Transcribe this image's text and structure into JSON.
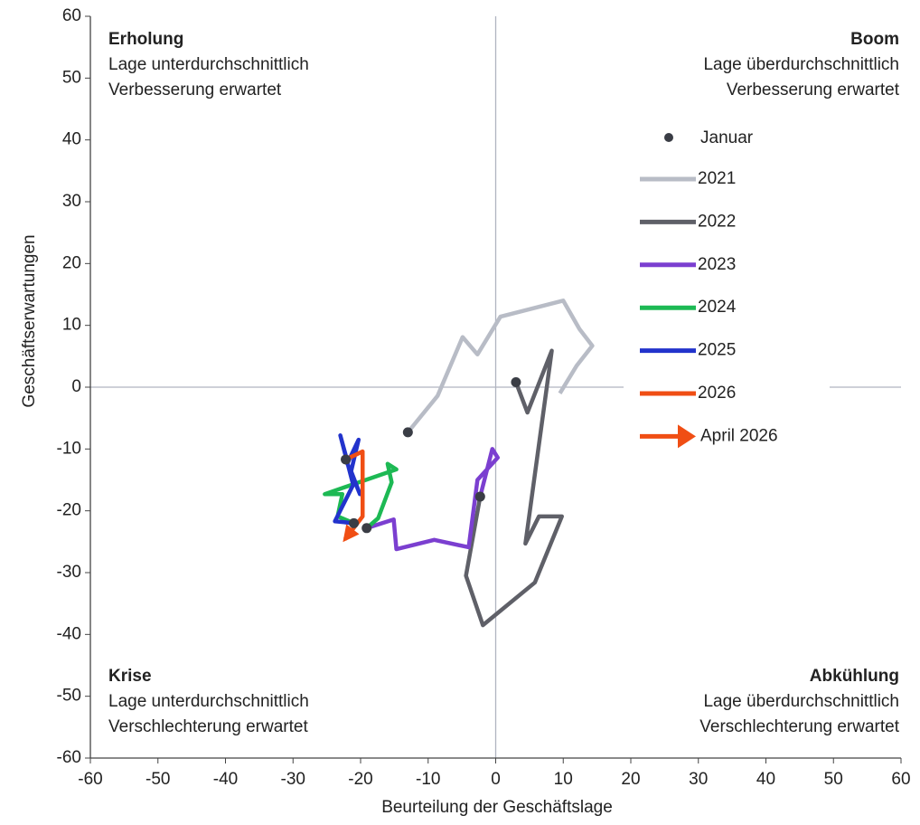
{
  "chart_data": {
    "type": "line",
    "x_label": "Beurteilung der Geschäftslage",
    "y_label": "Geschäftserwartungen",
    "xlim": [
      -60,
      60
    ],
    "xticks": [
      -60,
      -50,
      -40,
      -30,
      -20,
      -10,
      0,
      10,
      20,
      30,
      40,
      50,
      60
    ],
    "ylim": [
      -60,
      60
    ],
    "yticks": [
      -60,
      -50,
      -40,
      -30,
      -20,
      -10,
      0,
      10,
      20,
      30,
      40,
      50,
      60
    ],
    "quadrants": {
      "top_left": [
        "Erholung",
        "Lage unterdurchschnittlich",
        "Verbesserung erwartet"
      ],
      "top_right": [
        "Boom",
        "Lage überdurchschnittlich",
        "Verbesserung erwartet"
      ],
      "bottom_left": [
        "Krise",
        "Lage unterdurchschnittlich",
        "Verschlechterung erwartet"
      ],
      "bottom_right": [
        "Abkühlung",
        "Lage überdurchschnittlich",
        "Verschlechterung erwartet"
      ]
    },
    "marker_label": "Januar",
    "marker_color": "#3a3d45",
    "arrow_label": "April 2026",
    "series": [
      {
        "name": "2021",
        "color": "#b8bcc6",
        "x": [
          -13.0,
          -8.6,
          -4.9,
          -2.7,
          0.7,
          10.0,
          12.4,
          14.3,
          12.0,
          9.5
        ],
        "values": [
          -7.3,
          -1.4,
          8.1,
          5.3,
          11.4,
          14.0,
          9.4,
          6.7,
          3.5,
          -1.0
        ]
      },
      {
        "name": "2022",
        "color": "#5f6068",
        "x": [
          3.0,
          4.7,
          8.3,
          4.4,
          6.4,
          9.8,
          5.8,
          -1.9,
          -4.4,
          -2.3
        ],
        "values": [
          0.8,
          -4.1,
          5.9,
          -25.3,
          -20.9,
          -20.9,
          -31.6,
          -38.5,
          -30.5,
          -17.7
        ]
      },
      {
        "name": "2023",
        "color": "#7b3fd0",
        "x": [
          -2.3,
          -0.5,
          0.3,
          -2.7,
          -4.0,
          -9.1,
          -14.7,
          -15.1,
          -19.1
        ],
        "values": [
          -17.7,
          -10.0,
          -11.4,
          -15.0,
          -25.9,
          -24.7,
          -26.2,
          -21.4,
          -22.8
        ]
      },
      {
        "name": "2024",
        "color": "#1db954",
        "x": [
          -19.1,
          -17.4,
          -15.4,
          -16.0,
          -14.7,
          -25.3,
          -22.7,
          -23.4,
          -21.0
        ],
        "values": [
          -22.8,
          -21.2,
          -15.4,
          -12.4,
          -13.3,
          -17.3,
          -17.3,
          -20.9,
          -22.0
        ]
      },
      {
        "name": "2025",
        "color": "#2233cc",
        "x": [
          -21.0,
          -23.8,
          -21.1,
          -23.0,
          -21.9,
          -20.3,
          -21.4,
          -20.1,
          -22.2
        ],
        "values": [
          -22.0,
          -21.7,
          -15.8,
          -7.8,
          -12.2,
          -8.5,
          -13.6,
          -17.3,
          -11.7
        ]
      },
      {
        "name": "2026",
        "color": "#f04e14",
        "x": [
          -22.2,
          -19.7,
          -19.7,
          -22.3
        ],
        "values": [
          -11.7,
          -10.4,
          -20.9,
          -24.6
        ]
      }
    ]
  }
}
